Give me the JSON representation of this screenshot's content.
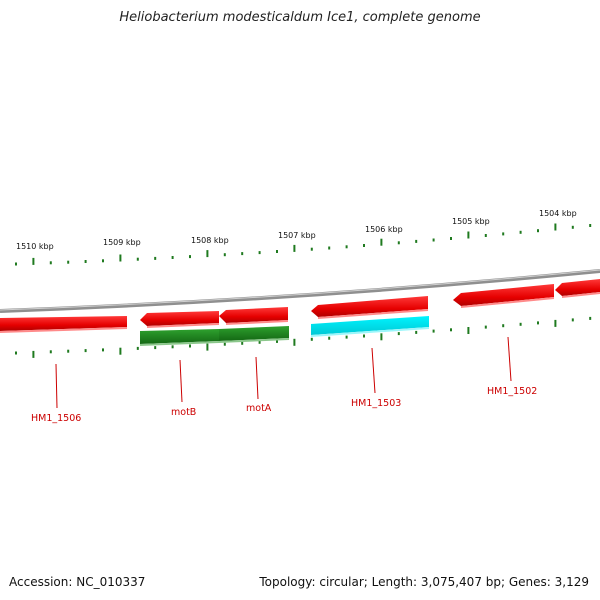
{
  "title": "Heliobacterium modesticaldum Ice1, complete genome",
  "accession": "Accession: NC_010337",
  "topology": "Topology: circular; Length: 3,075,407 bp; Genes: 3,129",
  "colors": {
    "backbone": "#8a8a8a",
    "tick": "#1f7a1f",
    "gene_red": "#ee0000",
    "gene_green": "#1f8a1f",
    "gene_cyan": "#00e5ee",
    "label": "#cc0000"
  },
  "scale_labels": [
    "1510 kbp",
    "1509 kbp",
    "1508 kbp",
    "1507 kbp",
    "1506 kbp",
    "1505 kbp",
    "1504 kbp"
  ],
  "gene_labels": [
    "HM1_1506",
    "motB",
    "motA",
    "HM1_1503",
    "HM1_1502"
  ]
}
